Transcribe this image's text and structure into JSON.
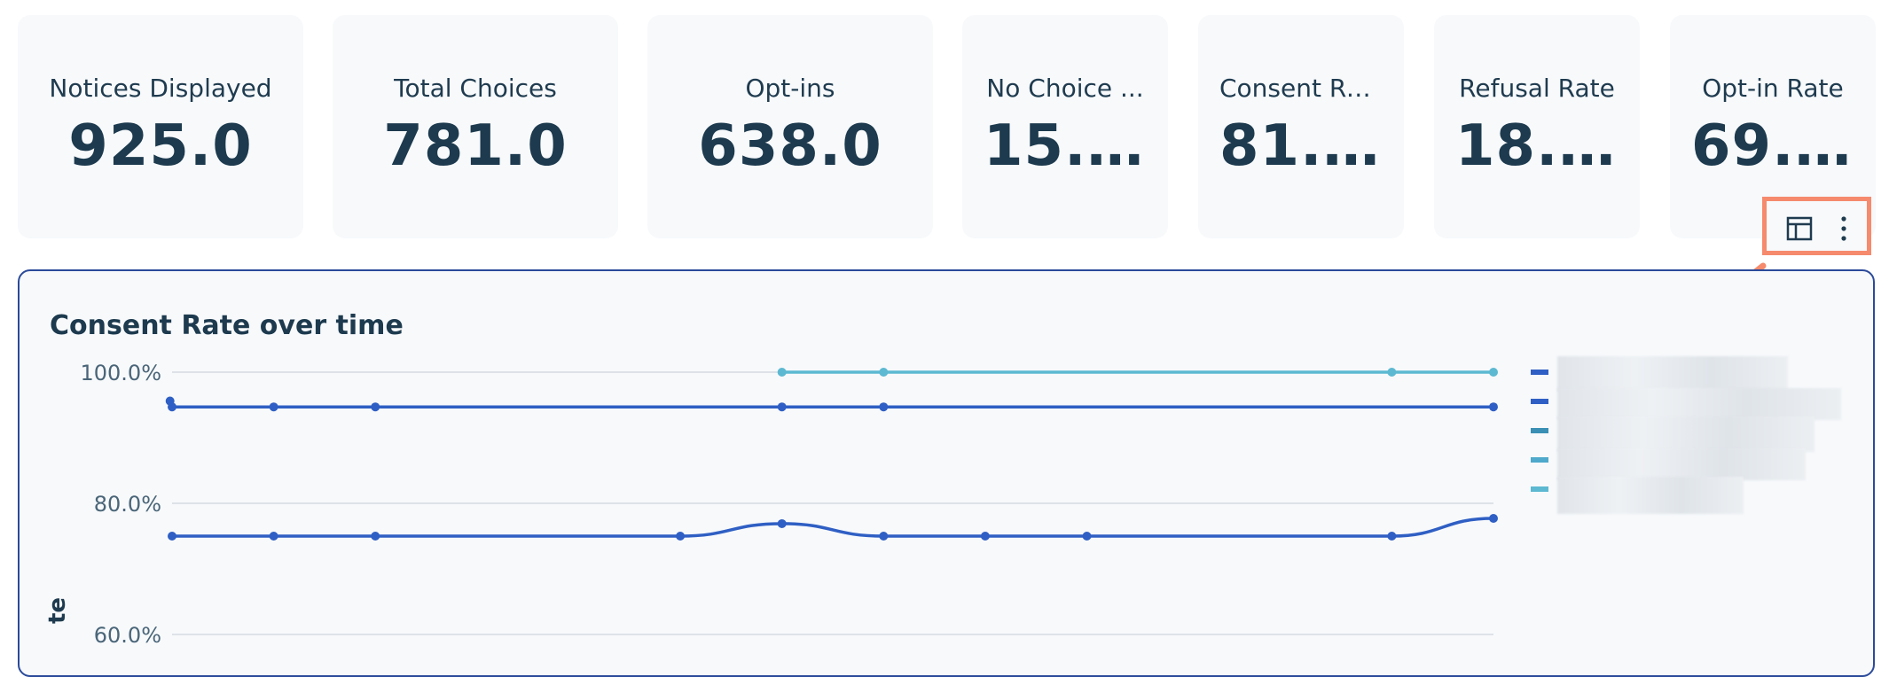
{
  "kpis": [
    {
      "label": "Notices Displayed",
      "value": "925.0"
    },
    {
      "label": "Total Choices",
      "value": "781.0"
    },
    {
      "label": "Opt-ins",
      "value": "638.0"
    },
    {
      "label": "No Choice ...",
      "value": "15...."
    },
    {
      "label": "Consent Ra...",
      "value": "81...."
    },
    {
      "label": "Refusal Rate",
      "value": "18...."
    },
    {
      "label": "Opt-in Rate",
      "value": "69...."
    }
  ],
  "toolbar": {
    "table_icon": "table-layout-icon",
    "menu_icon": "more-vertical-icon",
    "highlight_color": "#f58a6d"
  },
  "chart": {
    "title": "Consent Rate over time",
    "ylabel_fragment": "te"
  },
  "chart_data": {
    "type": "line",
    "title": "Consent Rate over time",
    "ylabel": "",
    "ylim": [
      60,
      100
    ],
    "ytick_labels": [
      "100.0%",
      "80.0%",
      "60.0%"
    ],
    "yticks": [
      100,
      80,
      60
    ],
    "x": [
      0,
      1,
      2,
      5,
      6,
      7,
      8,
      9,
      12,
      13
    ],
    "series": [
      {
        "color": "#2f5fc4",
        "points": [
          [
            0,
            94.7
          ],
          [
            1,
            94.7
          ],
          [
            2,
            94.7
          ],
          [
            6,
            94.7
          ],
          [
            7,
            94.7
          ],
          [
            13,
            94.7
          ]
        ],
        "startPoint": [
          -0.02,
          95.6
        ]
      },
      {
        "color": "#2f5fc4",
        "points": [
          [
            0,
            75.0
          ],
          [
            1,
            75.0
          ],
          [
            2,
            75.0
          ],
          [
            5,
            75.0
          ],
          [
            6,
            76.9
          ],
          [
            7,
            75.0
          ],
          [
            8,
            75.0
          ],
          [
            9,
            75.0
          ],
          [
            12,
            75.0
          ],
          [
            13,
            77.7
          ]
        ]
      },
      {
        "color": "#5cb9d1",
        "points": [
          [
            6,
            100
          ],
          [
            7,
            100
          ],
          [
            12,
            100
          ],
          [
            13,
            100
          ]
        ]
      }
    ],
    "legend_colors": [
      "#2f5fc4",
      "#2f5fc4",
      "#3a8fb5",
      "#4ea9cc",
      "#5cb9d1"
    ],
    "grid": true,
    "legend_position": "right"
  },
  "annotation": {
    "arrow_color": "#f58a6d"
  }
}
